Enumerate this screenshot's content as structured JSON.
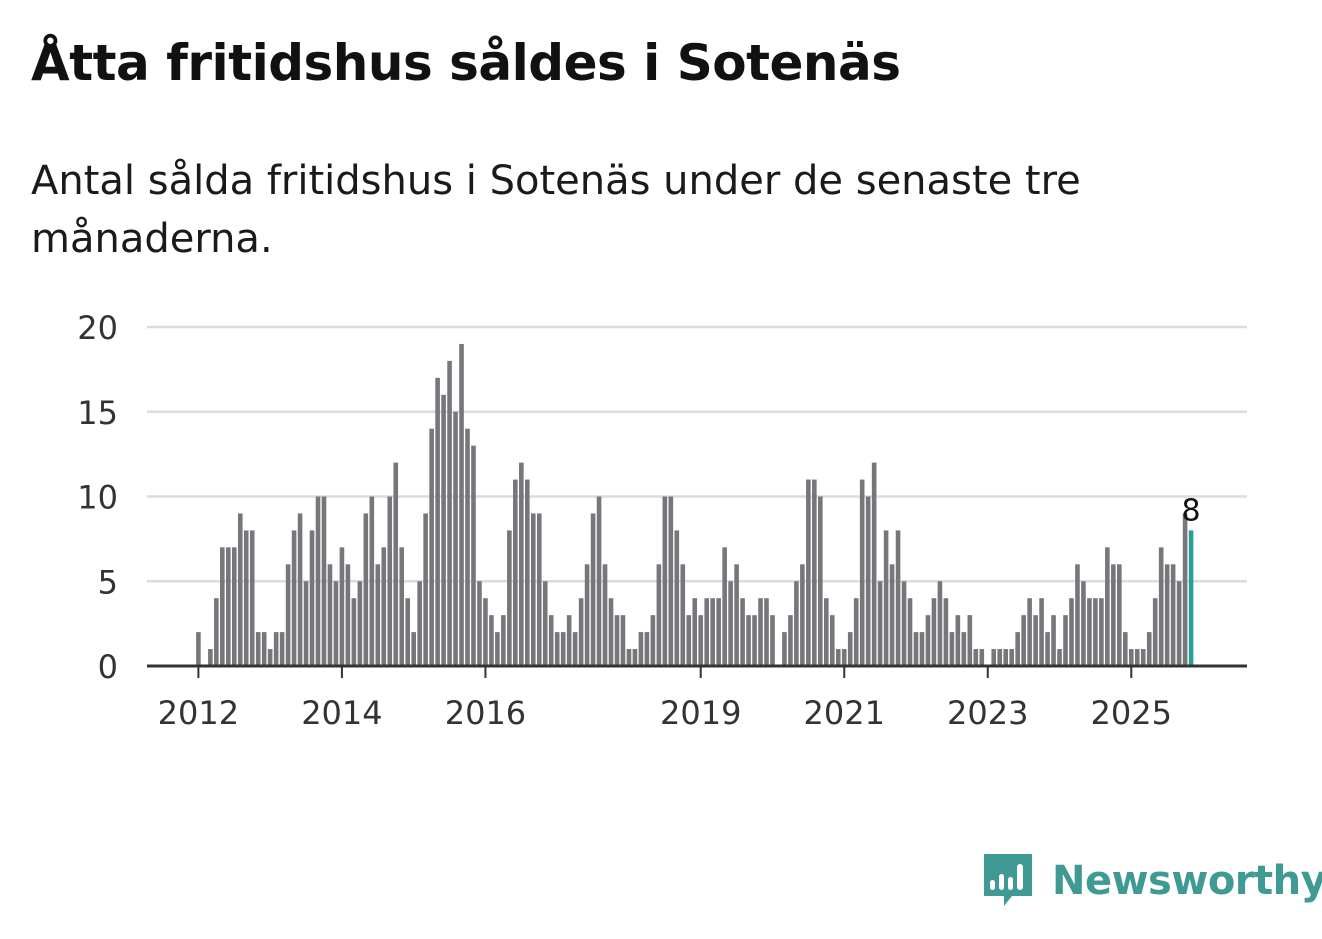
{
  "title": "Åtta fritidshus såldes i Sotenäs",
  "subtitle": "Antal sålda fritidshus i Sotenäs under de senaste tre månaderna.",
  "brand": {
    "name": "Newsworthy",
    "color": "#3e9a93",
    "icon": "newsworthy-logo-icon"
  },
  "colors": {
    "bar": "#77767b",
    "highlight": "#2a9d97",
    "grid": "#dcdcdc",
    "axis": "#333333"
  },
  "chart_data": {
    "type": "bar",
    "title": "Åtta fritidshus såldes i Sotenäs",
    "xlabel": "",
    "ylabel": "",
    "ylim": [
      0,
      20
    ],
    "yticks": [
      0,
      5,
      10,
      15,
      20
    ],
    "grid": true,
    "start_month": "2012-01",
    "xtick_labels": [
      {
        "label": "2012",
        "index": 0
      },
      {
        "label": "2014",
        "index": 24
      },
      {
        "label": "2016",
        "index": 48
      },
      {
        "label": "2019",
        "index": 84
      },
      {
        "label": "2021",
        "index": 108
      },
      {
        "label": "2023",
        "index": 132
      },
      {
        "label": "2025",
        "index": 156
      }
    ],
    "annotations": [
      {
        "index": 166,
        "label": "8"
      }
    ],
    "highlight_index": 166,
    "values": [
      2,
      0,
      1,
      4,
      7,
      7,
      7,
      9,
      8,
      8,
      2,
      2,
      1,
      2,
      2,
      6,
      8,
      9,
      5,
      8,
      10,
      10,
      6,
      5,
      7,
      6,
      4,
      5,
      9,
      10,
      6,
      7,
      10,
      12,
      7,
      4,
      2,
      5,
      9,
      14,
      17,
      16,
      18,
      15,
      19,
      14,
      13,
      5,
      4,
      3,
      2,
      3,
      8,
      11,
      12,
      11,
      9,
      9,
      5,
      3,
      2,
      2,
      3,
      2,
      4,
      6,
      9,
      10,
      6,
      4,
      3,
      3,
      1,
      1,
      2,
      2,
      3,
      6,
      10,
      10,
      8,
      6,
      3,
      4,
      3,
      4,
      4,
      4,
      7,
      5,
      6,
      4,
      3,
      3,
      4,
      4,
      3,
      0,
      2,
      3,
      5,
      6,
      11,
      11,
      10,
      4,
      3,
      1,
      1,
      2,
      4,
      11,
      10,
      12,
      5,
      8,
      6,
      8,
      5,
      4,
      2,
      2,
      3,
      4,
      5,
      4,
      2,
      3,
      2,
      3,
      1,
      1,
      0,
      1,
      1,
      1,
      1,
      2,
      3,
      4,
      3,
      4,
      2,
      3,
      1,
      3,
      4,
      6,
      5,
      4,
      4,
      4,
      7,
      6,
      6,
      2,
      1,
      1,
      1,
      2,
      4,
      7,
      6,
      6,
      5,
      9,
      8
    ]
  }
}
